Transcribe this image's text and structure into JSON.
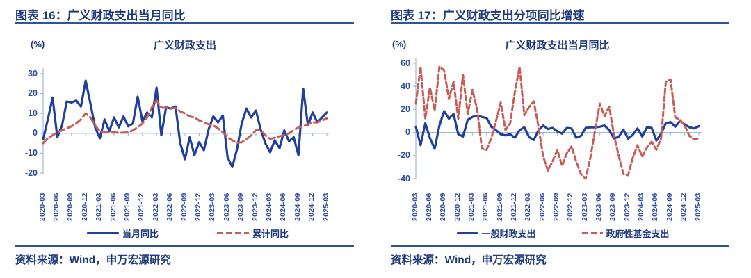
{
  "source": "资料来源：Wind，申万宏源研究",
  "chart_data": [
    {
      "type": "line",
      "header": "图表 16：广义财政支出当月同比",
      "title": "广义财政支出",
      "unit": "(%)",
      "ylim": [
        -20,
        30
      ],
      "y_ticks": [
        30,
        20,
        10,
        0,
        -10,
        -20
      ],
      "x_label_ticks": [
        "2020-03",
        "2020-06",
        "2020-09",
        "2020-12",
        "2021-03",
        "2021-06",
        "2021-09",
        "2021-12",
        "2022-03",
        "2022-06",
        "2022-09",
        "2022-12",
        "2023-03",
        "2023-06",
        "2023-09",
        "2023-12",
        "2024-03",
        "2024-06",
        "2024-09",
        "2024-12",
        "2025-03"
      ],
      "x_monthly_start": "2020-03",
      "x_monthly_end": "2025-03",
      "legend_position": "bottom",
      "grid": "zero-line-only",
      "series": [
        {
          "name": "当月同比",
          "style": "solid",
          "color": "#20409a",
          "values": [
            -3,
            7,
            18,
            -2,
            4,
            16,
            15.5,
            16.5,
            13.5,
            26.5,
            15,
            3,
            -2.5,
            7,
            1,
            8,
            3,
            8.5,
            3.5,
            5,
            18.5,
            6,
            10.5,
            8,
            23,
            -1,
            13,
            12.5,
            13.5,
            -5,
            -13,
            -2,
            -11,
            -4.5,
            -8.5,
            2,
            8.5,
            5.5,
            9,
            -12,
            -17,
            -8,
            5,
            12.5,
            8,
            11.5,
            2,
            -5,
            -9.5,
            -3.5,
            -7.5,
            1.5,
            -4,
            -2,
            -11,
            22.5,
            4,
            10.5,
            5.5,
            8,
            10.5
          ]
        },
        {
          "name": "累计同比",
          "style": "dashed",
          "color": "#c75d58",
          "values": [
            -5,
            -2.5,
            -1,
            0.5,
            1.5,
            2.5,
            3.5,
            5,
            7,
            10,
            8,
            4,
            1,
            0.5,
            0.5,
            0.5,
            0.3,
            0.3,
            0.5,
            1.5,
            3,
            5,
            8,
            13,
            16.5,
            13,
            12.8,
            12.5,
            12.8,
            11,
            10,
            8.5,
            8,
            6.5,
            5.5,
            4.5,
            4,
            2.5,
            0.5,
            -2,
            -3.5,
            -4.8,
            -4.5,
            -3,
            -1,
            1.5,
            1.5,
            -1,
            -2.8,
            -2.2,
            -1.5,
            -1,
            0,
            1.5,
            3,
            3.5,
            4.5,
            5.5,
            5.5,
            6.5,
            7.5
          ]
        }
      ]
    },
    {
      "type": "line",
      "header": "图表 17：广义财政支出分项同比增速",
      "title": "广义财政支出当月同比",
      "unit": "(%)",
      "ylim": [
        -40,
        60
      ],
      "y_ticks": [
        60,
        40,
        20,
        0,
        -20,
        -40
      ],
      "x_label_ticks": [
        "2020-03",
        "2020-06",
        "2020-09",
        "2020-12",
        "2021-03",
        "2021-06",
        "2021-09",
        "2021-12",
        "2022-03",
        "2022-06",
        "2022-09",
        "2022-12",
        "2023-03",
        "2023-06",
        "2023-09",
        "2023-12",
        "2024-03",
        "2024-06",
        "2024-09",
        "2024-12",
        "2025-03"
      ],
      "x_monthly_start": "2020-03",
      "x_monthly_end": "2025-03",
      "legend_position": "bottom",
      "grid": "zero-line-only",
      "series": [
        {
          "name": "一般财政支出",
          "style": "solid",
          "color": "#20409a",
          "values": [
            5,
            -11,
            8,
            -5,
            -14,
            6,
            18.5,
            12,
            16,
            -1.5,
            -3.5,
            11,
            13.5,
            14.5,
            13.5,
            12.5,
            5,
            2,
            -1.5,
            -2.5,
            -1.5,
            -4.5,
            2,
            4.5,
            -4,
            -6.5,
            2,
            6,
            3,
            4,
            1,
            -1,
            4,
            3.5,
            -4.5,
            -3,
            4,
            4.5,
            4.5,
            5,
            6,
            2,
            -5,
            -4,
            2.5,
            -5.5,
            -2,
            3.5,
            -3.5,
            4.5,
            4,
            -7,
            -1,
            8,
            9,
            5,
            10,
            7,
            4.5,
            3.5,
            5.5
          ]
        },
        {
          "name": "政府性基金支出",
          "style": "dashed",
          "color": "#c75d58",
          "values": [
            25,
            57,
            12,
            39,
            19,
            57,
            54,
            29,
            44,
            12,
            50,
            16,
            37,
            20,
            -14,
            -15,
            -5,
            10,
            26,
            2,
            8,
            35,
            57,
            15,
            22,
            27,
            5,
            -21,
            -33,
            -25,
            -15,
            -29,
            -18,
            -12,
            -25,
            -36,
            -40,
            -22,
            2,
            25,
            14,
            22.5,
            -2,
            -20,
            -36,
            -37,
            -22,
            -11,
            -21,
            -13,
            -8,
            -15,
            -5,
            44,
            46,
            13,
            11,
            6,
            -3,
            -6,
            -5
          ]
        }
      ]
    }
  ]
}
